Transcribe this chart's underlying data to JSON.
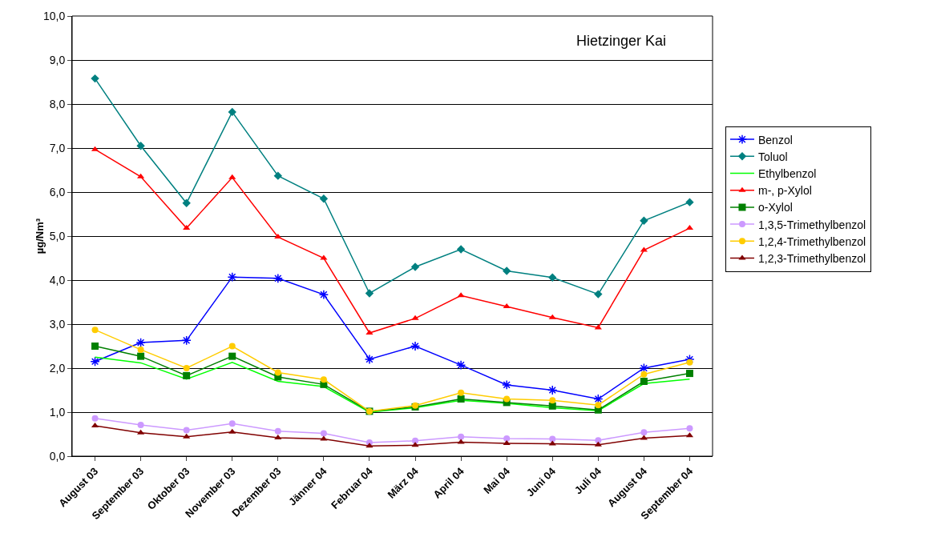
{
  "chart_data": {
    "type": "line",
    "title": "Hietzinger Kai",
    "ylabel": "µg/Nm³",
    "categories": [
      "August 03",
      "September 03",
      "Oktober 03",
      "November 03",
      "Dezember 03",
      "Jänner 04",
      "Februar 04",
      "März 04",
      "April 04",
      "Mai 04",
      "Juni 04",
      "Juli 04",
      "August 04",
      "September 04"
    ],
    "ylim": [
      0,
      10
    ],
    "yticks": [
      {
        "value": 0,
        "label": "0,0"
      },
      {
        "value": 1,
        "label": "1,0"
      },
      {
        "value": 2,
        "label": "2,0"
      },
      {
        "value": 3,
        "label": "3,0"
      },
      {
        "value": 4,
        "label": "4,0"
      },
      {
        "value": 5,
        "label": "5,0"
      },
      {
        "value": 6,
        "label": "6,0"
      },
      {
        "value": 7,
        "label": "7,0"
      },
      {
        "value": 8,
        "label": "8,0"
      },
      {
        "value": 9,
        "label": "9,0"
      },
      {
        "value": 10,
        "label": "10,0"
      }
    ],
    "grid": "y",
    "legend": "right",
    "line_style": "solid",
    "series": [
      {
        "name": "Benzol",
        "color": "#0000ff",
        "marker": "cross",
        "values": [
          2.15,
          2.58,
          2.63,
          4.07,
          4.04,
          3.67,
          2.2,
          2.5,
          2.07,
          1.62,
          1.5,
          1.3,
          2.0,
          2.2
        ]
      },
      {
        "name": "Toluol",
        "color": "#008080",
        "marker": "diamond",
        "values": [
          8.58,
          7.05,
          5.75,
          7.82,
          6.37,
          5.85,
          3.7,
          4.3,
          4.7,
          4.21,
          4.06,
          3.68,
          5.35,
          5.77
        ]
      },
      {
        "name": "Ethylbenzol",
        "color": "#00ff00",
        "marker": "none",
        "values": [
          2.25,
          2.12,
          1.75,
          2.13,
          1.7,
          1.58,
          1.0,
          1.1,
          1.27,
          1.2,
          1.1,
          1.03,
          1.65,
          1.75
        ]
      },
      {
        "name": "m-, p-Xylol",
        "color": "#ff0000",
        "marker": "triangle",
        "values": [
          6.97,
          6.35,
          5.18,
          6.33,
          4.98,
          4.5,
          2.8,
          3.13,
          3.65,
          3.4,
          3.15,
          2.92,
          4.68,
          5.18
        ]
      },
      {
        "name": "o-Xylol",
        "color": "#008000",
        "marker": "square",
        "values": [
          2.5,
          2.27,
          1.83,
          2.27,
          1.8,
          1.63,
          1.02,
          1.12,
          1.3,
          1.22,
          1.14,
          1.05,
          1.7,
          1.88
        ]
      },
      {
        "name": "1,3,5-Trimethylbenzol",
        "color": "#cc99ff",
        "marker": "circle",
        "values": [
          0.86,
          0.71,
          0.59,
          0.74,
          0.57,
          0.52,
          0.31,
          0.35,
          0.44,
          0.4,
          0.39,
          0.36,
          0.54,
          0.63
        ]
      },
      {
        "name": "1,2,4-Trimethylbenzol",
        "color": "#ffcc00",
        "marker": "circle",
        "values": [
          2.87,
          2.42,
          2.0,
          2.5,
          1.9,
          1.74,
          1.02,
          1.15,
          1.44,
          1.3,
          1.27,
          1.16,
          1.86,
          2.13
        ]
      },
      {
        "name": "1,2,3-Trimethylbenzol",
        "color": "#800000",
        "marker": "triangle",
        "values": [
          0.69,
          0.53,
          0.44,
          0.55,
          0.42,
          0.39,
          0.23,
          0.25,
          0.32,
          0.29,
          0.28,
          0.26,
          0.41,
          0.47
        ]
      }
    ]
  }
}
